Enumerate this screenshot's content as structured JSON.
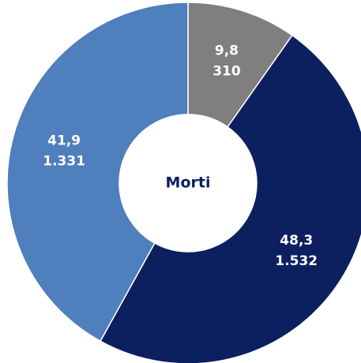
{
  "chart_data": {
    "type": "donut",
    "title": "Morti",
    "values": [
      310,
      1532,
      1331
    ],
    "value_labels": [
      "310",
      "1.532",
      "1.331"
    ],
    "percent": [
      9.8,
      48.3,
      41.9
    ],
    "percent_labels": [
      "9,8",
      "48,3",
      "41,9"
    ],
    "colors": [
      "#7f7f7f",
      "#0c1f5e",
      "#4f7fbc"
    ]
  }
}
